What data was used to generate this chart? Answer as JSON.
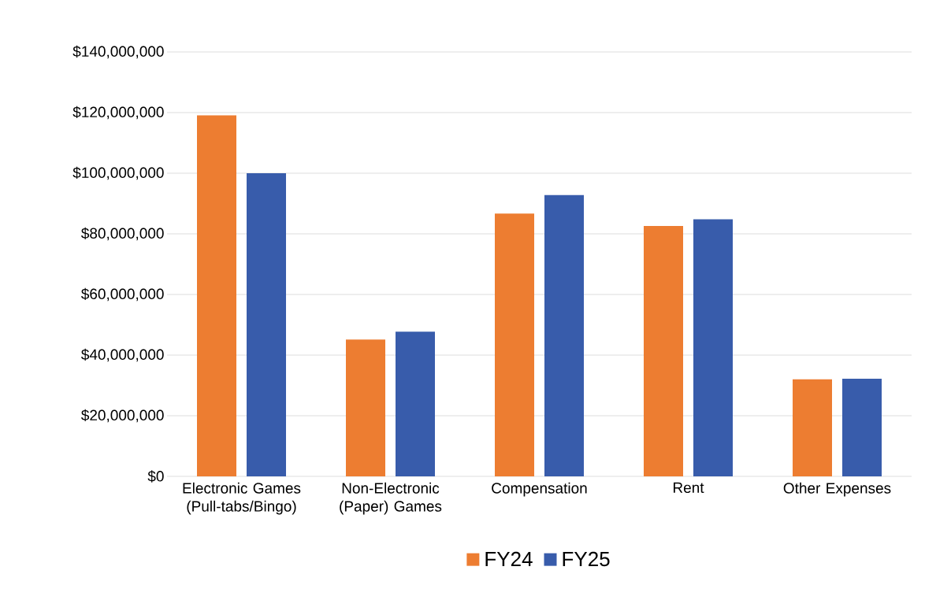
{
  "chart_data": {
    "type": "bar",
    "categories": [
      "Electronic Games (Pull-tabs/Bingo)",
      "Non-Electronic (Paper) Games",
      "Compensation",
      "Rent",
      "Other Expenses"
    ],
    "series": [
      {
        "name": "FY24",
        "color": "#ed7d31",
        "values": [
          119100000,
          45100000,
          86700000,
          82600000,
          32000000
        ]
      },
      {
        "name": "FY25",
        "color": "#385cab",
        "values": [
          100000000,
          47700000,
          92800000,
          84800000,
          32200000
        ]
      }
    ],
    "ylim": [
      0,
      140000000
    ],
    "yticks": [
      {
        "value": 0,
        "label": "$0"
      },
      {
        "value": 20000000,
        "label": "$20,000,000"
      },
      {
        "value": 40000000,
        "label": "$40,000,000"
      },
      {
        "value": 60000000,
        "label": "$60,000,000"
      },
      {
        "value": 80000000,
        "label": "$80,000,000"
      },
      {
        "value": 100000000,
        "label": "$100,000,000"
      },
      {
        "value": 120000000,
        "label": "$120,000,000"
      },
      {
        "value": 140000000,
        "label": "$140,000,000"
      }
    ],
    "grid": "y",
    "legend": "bottom"
  }
}
